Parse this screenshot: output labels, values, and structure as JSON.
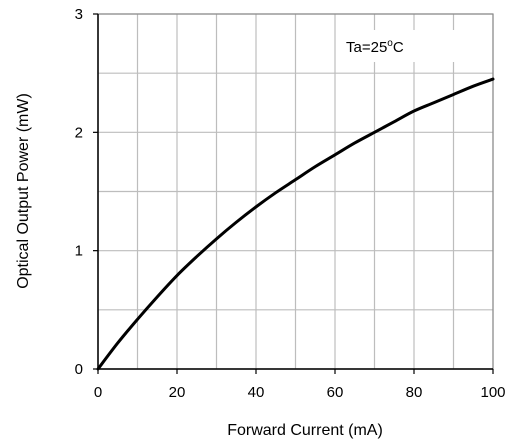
{
  "chart_data": {
    "type": "line",
    "title": "",
    "xlabel": "Forward Current  (mA)",
    "ylabel": "Optical Output Power  (mW)",
    "xlim": [
      0,
      100
    ],
    "ylim": [
      0,
      3
    ],
    "xticks": [
      0,
      20,
      40,
      60,
      80,
      100
    ],
    "yticks": [
      0,
      1,
      2,
      3
    ],
    "xtick_labels": [
      "0",
      "20",
      "40",
      "60",
      "80",
      "100"
    ],
    "ytick_labels": [
      "0",
      "1",
      "2",
      "3"
    ],
    "grid": true,
    "annotation": {
      "prefix": "Ta=25",
      "sup": "o",
      "suffix": "C",
      "position": "top-right"
    },
    "series": [
      {
        "color": "#000000",
        "x": [
          0,
          5,
          10,
          15,
          20,
          25,
          30,
          35,
          40,
          45,
          50,
          55,
          60,
          65,
          70,
          75,
          80,
          85,
          90,
          95,
          100
        ],
        "y": [
          0,
          0.22,
          0.42,
          0.61,
          0.79,
          0.95,
          1.1,
          1.24,
          1.37,
          1.49,
          1.6,
          1.71,
          1.81,
          1.91,
          2.0,
          2.09,
          2.18,
          2.25,
          2.32,
          2.39,
          2.45
        ]
      }
    ]
  }
}
